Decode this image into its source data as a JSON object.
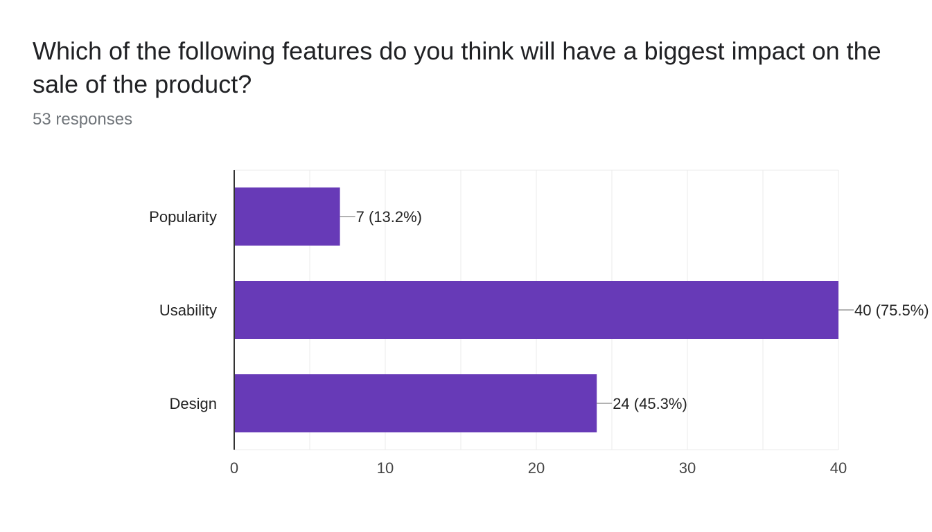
{
  "header": {
    "title": "Which of the following features do you think will have a biggest impact on the sale of the product?",
    "responses": "53 responses"
  },
  "colors": {
    "bar": "#673ab7",
    "grid": "#ebebeb",
    "axis": "#333333",
    "leader": "#999999",
    "text": "#222222",
    "tick_text": "#444444"
  },
  "chart_data": {
    "type": "bar",
    "orientation": "horizontal",
    "title": "Which of the following features do you think will have a biggest impact on the sale of the product?",
    "subtitle": "53 responses",
    "xlabel": "",
    "ylabel": "",
    "categories": [
      "Popularity",
      "Usability",
      "Design"
    ],
    "values": [
      7,
      40,
      24
    ],
    "data_labels": [
      "7 (13.2%)",
      "40 (75.5%)",
      "24 (45.3%)"
    ],
    "xlim": [
      0,
      40
    ],
    "x_ticks": [
      0,
      10,
      20,
      30,
      40
    ],
    "grid": true,
    "legend": "none"
  }
}
